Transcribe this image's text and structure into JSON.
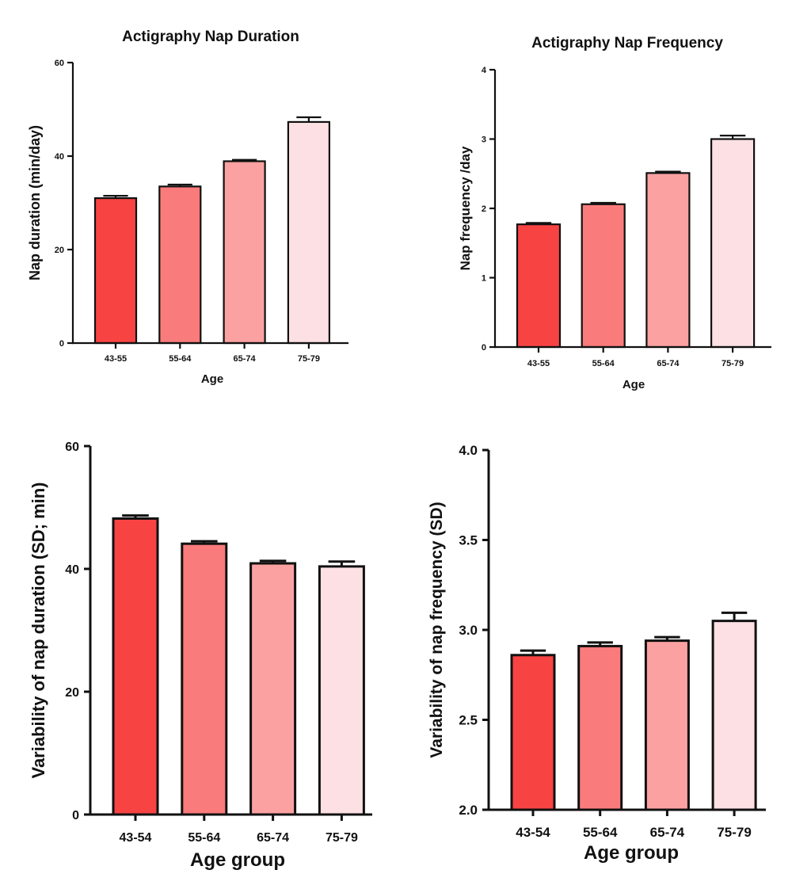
{
  "colors": {
    "bar1": "#f84343",
    "bar2": "#fa7b7b",
    "bar3": "#fba1a1",
    "bar4": "#fde0e3",
    "stroke": "#111111"
  },
  "chart_data": [
    {
      "type": "bar",
      "title": "Actigraphy Nap Duration",
      "xlabel": "Age",
      "ylabel": "Nap duration (min/day)",
      "categories": [
        "43-55",
        "55-64",
        "65-74",
        "75-79"
      ],
      "values": [
        31,
        33.5,
        38.9,
        47.3
      ],
      "errors": [
        0.5,
        0.4,
        0.3,
        1.0
      ],
      "ylim": [
        0,
        60
      ],
      "yticks": [
        "0",
        "20",
        "40",
        "60"
      ],
      "grid": false,
      "legend": "none"
    },
    {
      "type": "bar",
      "title": "Actigraphy Nap Frequency",
      "xlabel": "Age",
      "ylabel": "Nap frequency /day",
      "categories": [
        "43-55",
        "55-64",
        "65-74",
        "75-79"
      ],
      "values": [
        1.77,
        2.06,
        2.51,
        3.0
      ],
      "errors": [
        0.02,
        0.02,
        0.02,
        0.05
      ],
      "ylim": [
        0,
        4
      ],
      "yticks": [
        "0",
        "1",
        "2",
        "3",
        "4"
      ],
      "grid": false,
      "legend": "none"
    },
    {
      "type": "bar",
      "title": "",
      "xlabel": "Age group",
      "ylabel": "Variability of nap duration (SD; min)",
      "categories": [
        "43-54",
        "55-64",
        "65-74",
        "75-79"
      ],
      "values": [
        48.2,
        44.1,
        40.9,
        40.4
      ],
      "errors": [
        0.5,
        0.4,
        0.4,
        0.8
      ],
      "ylim": [
        0,
        60
      ],
      "yticks": [
        "0",
        "20",
        "40",
        "60"
      ],
      "grid": false,
      "legend": "none"
    },
    {
      "type": "bar",
      "title": "",
      "xlabel": "Age group",
      "ylabel": "Variability of nap frequency (SD)",
      "categories": [
        "43-54",
        "55-64",
        "65-74",
        "75-79"
      ],
      "values": [
        2.86,
        2.91,
        2.94,
        3.05
      ],
      "errors": [
        0.025,
        0.02,
        0.02,
        0.045
      ],
      "ylim": [
        2.0,
        4.0
      ],
      "yticks": [
        "2.0",
        "2.5",
        "3.0",
        "3.5",
        "4.0"
      ],
      "grid": false,
      "legend": "none"
    }
  ]
}
